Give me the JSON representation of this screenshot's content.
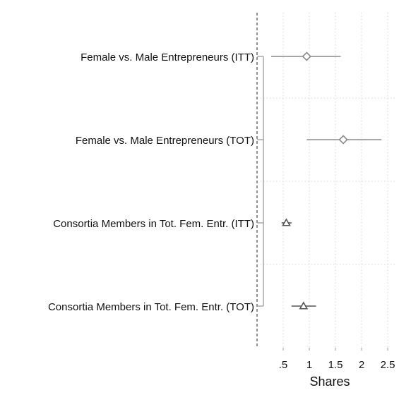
{
  "chart_data": {
    "type": "scatter",
    "subtype": "coefficient-plot",
    "xlabel": "Shares",
    "xticks": [
      {
        "value": 0.5,
        "label": ".5"
      },
      {
        "value": 1,
        "label": "1"
      },
      {
        "value": 1.5,
        "label": "1.5"
      },
      {
        "value": 2,
        "label": "2"
      },
      {
        "value": 2.5,
        "label": "2.5"
      }
    ],
    "xlim": [
      -0.45,
      2.65
    ],
    "reference_line": 0,
    "grid": true,
    "rows": [
      {
        "label": "Female vs. Male Entrepreneurs (ITT)",
        "estimate": 0.95,
        "ci": [
          0.27,
          1.6
        ],
        "marker": "diamond"
      },
      {
        "label": "Female vs. Male Entrepreneurs (TOT)",
        "estimate": 1.65,
        "ci": [
          0.95,
          2.38
        ],
        "marker": "diamond"
      },
      {
        "label": "Consortia Members in Tot. Fem. Entr. (ITT)",
        "estimate": 0.56,
        "ci": [
          0.47,
          0.66
        ],
        "marker": "triangle"
      },
      {
        "label": "Consortia Members in Tot. Fem. Entr. (TOT)",
        "estimate": 0.89,
        "ci": [
          0.66,
          1.13
        ],
        "marker": "triangle"
      }
    ],
    "colors": {
      "diamond": "#8a8a8a",
      "triangle": "#555555",
      "grid": "#d6d6d6",
      "reference": "#777777"
    }
  }
}
